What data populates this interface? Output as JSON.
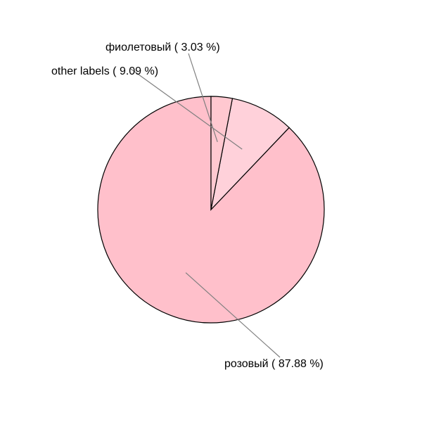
{
  "chart_data": {
    "type": "pie",
    "start_angle": "12 o'clock",
    "direction": "counter-clockwise",
    "slices": [
      {
        "name": "розовый",
        "value": 87.88,
        "label": "розовый ( 87.88 %)",
        "color": "#ffc0cb"
      },
      {
        "name": "other labels",
        "value": 9.09,
        "label": "other labels ( 9.09 %)",
        "color": "#ffd1da"
      },
      {
        "name": "фиолетовый",
        "value": 3.03,
        "label": "фиолетовый ( 3.03 %)",
        "color": "#ffc8d0"
      }
    ]
  }
}
